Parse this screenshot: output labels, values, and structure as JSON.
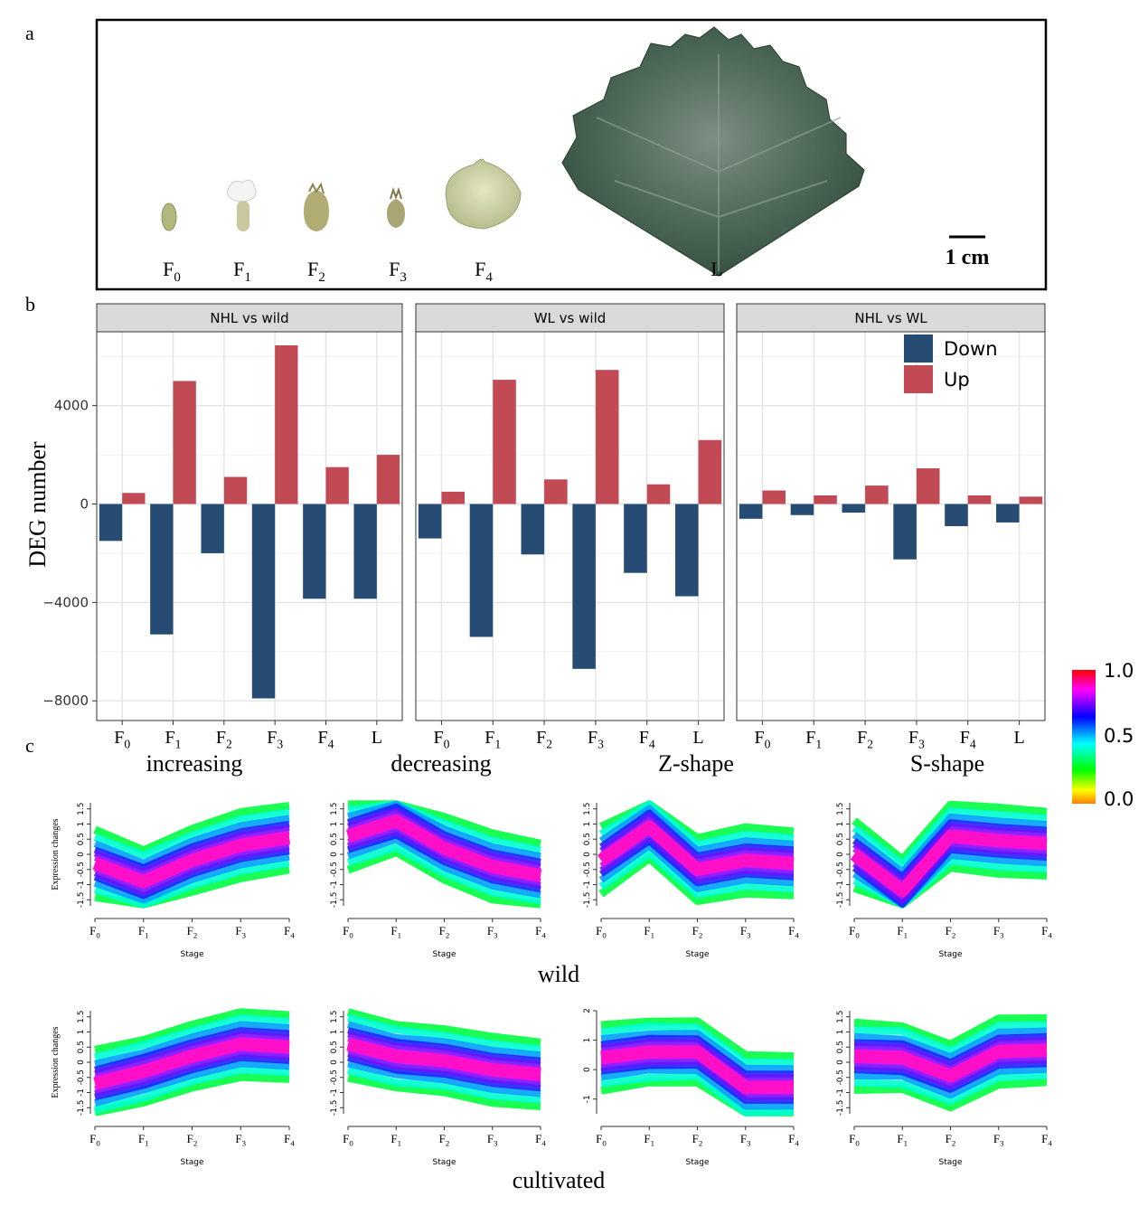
{
  "panel_labels": {
    "a": "a",
    "b": "b",
    "c": "c"
  },
  "panel_a": {
    "items": [
      {
        "label": "F",
        "sub": "0"
      },
      {
        "label": "F",
        "sub": "1"
      },
      {
        "label": "F",
        "sub": "2"
      },
      {
        "label": "F",
        "sub": "3"
      },
      {
        "label": "F",
        "sub": "4"
      },
      {
        "label": "L",
        "sub": ""
      }
    ],
    "scale_bar": "1 cm"
  },
  "chart_data": [
    {
      "type": "bar",
      "ylabel": "DEG number",
      "ylim": [
        -8800,
        7000
      ],
      "yticks": [
        4000,
        0,
        -4000,
        -8000
      ],
      "yticklabels": [
        "4000",
        "0",
        "−4000",
        "−8000"
      ],
      "categories": [
        {
          "label": "F",
          "sub": "0"
        },
        {
          "label": "F",
          "sub": "1"
        },
        {
          "label": "F",
          "sub": "2"
        },
        {
          "label": "F",
          "sub": "3"
        },
        {
          "label": "F",
          "sub": "4"
        },
        {
          "label": "L",
          "sub": ""
        }
      ],
      "legend": {
        "placement": "top-right",
        "entries": [
          {
            "name": "Down",
            "color": "#264c74"
          },
          {
            "name": "Up",
            "color": "#c24a55"
          }
        ]
      },
      "facets": [
        {
          "title": "NHL vs wild",
          "series": [
            {
              "name": "Down",
              "values": [
                -1500,
                -5300,
                -2000,
                -7900,
                -3850,
                -3850
              ]
            },
            {
              "name": "Up",
              "values": [
                450,
                5000,
                1100,
                6450,
                1500,
                2000
              ]
            }
          ]
        },
        {
          "title": "WL vs wild",
          "series": [
            {
              "name": "Down",
              "values": [
                -1400,
                -5400,
                -2050,
                -6700,
                -2800,
                -3750
              ]
            },
            {
              "name": "Up",
              "values": [
                500,
                5050,
                1000,
                5450,
                800,
                2600
              ]
            }
          ]
        },
        {
          "title": "NHL vs WL",
          "series": [
            {
              "name": "Down",
              "values": [
                -600,
                -450,
                -350,
                -2250,
                -900,
                -750
              ]
            },
            {
              "name": "Up",
              "values": [
                550,
                350,
                750,
                1450,
                350,
                300
              ]
            }
          ]
        }
      ]
    },
    {
      "type": "line",
      "pattern_titles": [
        "increasing",
        "decreasing",
        "Z-shape",
        "S-shape"
      ],
      "row_labels": [
        "wild",
        "cultivated"
      ],
      "ylabel": "Expression changes",
      "xlabel": "Stage",
      "stages": [
        {
          "label": "F",
          "sub": "0"
        },
        {
          "label": "F",
          "sub": "1"
        },
        {
          "label": "F",
          "sub": "2"
        },
        {
          "label": "F",
          "sub": "3"
        },
        {
          "label": "F",
          "sub": "4"
        }
      ],
      "yticks_default": [
        "1.5",
        "1",
        "0.5",
        "0",
        "-0.5",
        "-1",
        "-1.5"
      ],
      "yticks_cultivated_zshape": [
        "2",
        "1",
        "0",
        "-1"
      ],
      "colorbar": {
        "ticks": [
          "1.0",
          "0.5",
          "0.0"
        ],
        "range": [
          0,
          1
        ]
      },
      "panels": [
        {
          "row": "wild",
          "pattern": "increasing",
          "mean": [
            -0.3,
            -0.9,
            -0.2,
            0.3,
            0.55
          ]
        },
        {
          "row": "wild",
          "pattern": "decreasing",
          "mean": [
            0.6,
            1.1,
            0.2,
            -0.4,
            -0.7
          ]
        },
        {
          "row": "wild",
          "pattern": "Z-shape",
          "mean": [
            -0.2,
            0.9,
            -0.5,
            -0.2,
            -0.3
          ]
        },
        {
          "row": "wild",
          "pattern": "S-shape",
          "mean": [
            0.0,
            -1.2,
            0.6,
            0.45,
            0.35
          ]
        },
        {
          "row": "cultivated",
          "pattern": "increasing",
          "mean": [
            -0.7,
            -0.3,
            0.2,
            0.6,
            0.5
          ]
        },
        {
          "row": "cultivated",
          "pattern": "decreasing",
          "mean": [
            0.6,
            0.2,
            0.05,
            -0.25,
            -0.4
          ]
        },
        {
          "row": "cultivated",
          "pattern": "Z-shape",
          "mean": [
            0.4,
            0.6,
            0.6,
            -0.6,
            -0.6
          ]
        },
        {
          "row": "cultivated",
          "pattern": "S-shape",
          "mean": [
            0.2,
            0.15,
            -0.45,
            0.35,
            0.4
          ]
        }
      ]
    }
  ]
}
